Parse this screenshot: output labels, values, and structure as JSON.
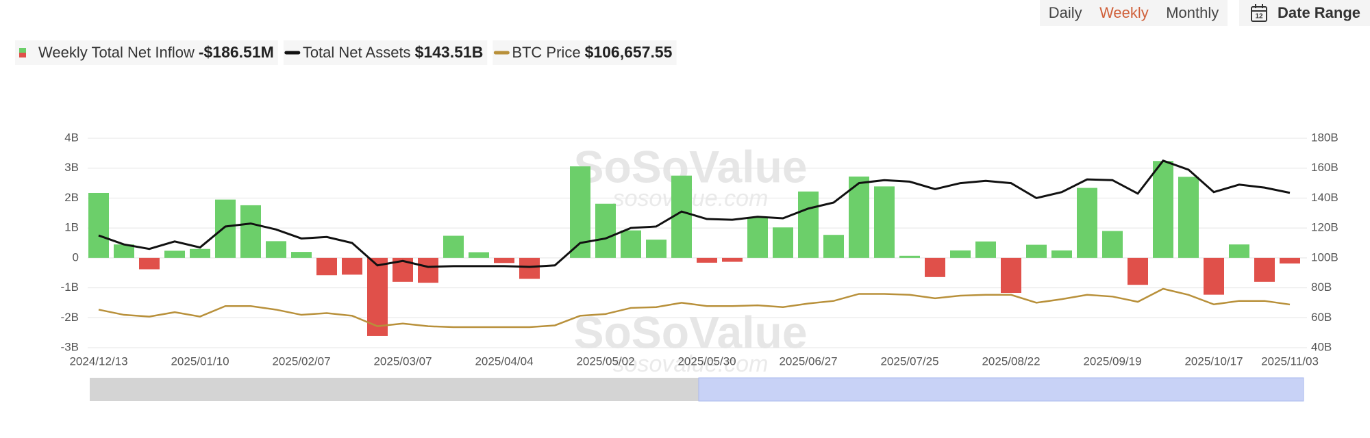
{
  "ui": {
    "tabs": [
      "Daily",
      "Weekly",
      "Monthly"
    ],
    "active_tab": 1,
    "date_range": "Date Range",
    "calendar_day": "12"
  },
  "chart_data": {
    "type": "bar",
    "watermark": "SoSoValue",
    "watermark_url": "sosovalue.com",
    "categories": [
      "2024/12/13",
      null,
      null,
      null,
      "2025/01/10",
      null,
      null,
      null,
      "2025/02/07",
      null,
      null,
      null,
      "2025/03/07",
      null,
      null,
      null,
      "2025/04/04",
      null,
      null,
      null,
      "2025/05/02",
      null,
      null,
      null,
      "2025/05/30",
      null,
      null,
      null,
      "2025/06/27",
      null,
      null,
      null,
      "2025/07/25",
      null,
      null,
      null,
      "2025/08/22",
      null,
      null,
      null,
      "2025/09/19",
      null,
      null,
      null,
      "2025/10/17",
      null,
      null,
      "2025/11/03"
    ],
    "series": [
      {
        "name": "Weekly Total Net Inflow",
        "latest": "-$186.51M",
        "type": "bar",
        "axis": "y",
        "color": "#6ccf6a",
        "negative_color": "#e0504a",
        "values": [
          2.17,
          0.45,
          -0.38,
          0.24,
          0.3,
          1.95,
          1.76,
          0.56,
          0.2,
          -0.58,
          -0.56,
          -2.61,
          -0.8,
          -0.83,
          0.74,
          0.19,
          -0.17,
          -0.7,
          0,
          3.06,
          1.81,
          0.92,
          0.61,
          2.75,
          -0.16,
          -0.13,
          1.37,
          1.02,
          2.22,
          0.77,
          2.72,
          2.39,
          0.07,
          -0.64,
          0.25,
          0.55,
          -1.17,
          0.44,
          0.25,
          2.34,
          0.9,
          -0.9,
          3.24,
          2.71,
          -1.23,
          0.45,
          -0.8,
          -0.18651
        ]
      },
      {
        "name": "Total Net Assets",
        "latest": "$143.51B",
        "type": "line",
        "axis": "y2",
        "color": "#111111",
        "values": [
          115,
          109,
          106,
          111,
          107,
          121,
          123,
          119,
          113,
          114,
          110,
          95,
          98,
          94,
          94.5,
          94.5,
          94.5,
          94,
          95,
          110,
          113,
          120,
          121,
          131,
          126,
          125.5,
          127.5,
          126.5,
          133,
          137,
          150,
          152,
          151,
          146,
          150,
          151.5,
          150,
          140,
          144,
          152.5,
          152,
          143,
          165,
          159,
          144,
          149,
          147,
          143.51
        ]
      },
      {
        "name": "BTC Price",
        "latest": "$106,657.55",
        "type": "line",
        "axis": "y3",
        "color": "#b8903a",
        "values": [
          101000,
          95300,
          93400,
          98200,
          93400,
          104900,
          104900,
          101000,
          95300,
          97200,
          94300,
          82800,
          85700,
          82800,
          81800,
          81800,
          81800,
          81800,
          83700,
          94300,
          96200,
          102900,
          103800,
          108600,
          104900,
          104900,
          105800,
          103800,
          107700,
          110600,
          118300,
          118300,
          117300,
          113500,
          116400,
          117300,
          117300,
          108600,
          112500,
          117300,
          115400,
          109600,
          123900,
          117300,
          106800,
          110600,
          110600,
          106657.55
        ]
      }
    ],
    "ylim": [
      -3,
      4
    ],
    "yticks": [
      {
        "value": -3,
        "label": "-3B"
      },
      {
        "value": -2,
        "label": "-2B"
      },
      {
        "value": -1,
        "label": "-1B"
      },
      0,
      {
        "value": 1,
        "label": "1B"
      },
      {
        "value": 2,
        "label": "2B"
      },
      {
        "value": 3,
        "label": "3B"
      },
      {
        "value": 4,
        "label": "4B"
      }
    ],
    "y2lim": [
      40,
      180
    ],
    "y2ticks": [
      {
        "value": 40,
        "label": "40B"
      },
      {
        "value": 60,
        "label": "60B"
      },
      {
        "value": 80,
        "label": "80B"
      },
      {
        "value": 100,
        "label": "100B"
      },
      {
        "value": 120,
        "label": "120B"
      },
      {
        "value": 140,
        "label": "140B"
      },
      {
        "value": 160,
        "label": "160B"
      },
      {
        "value": 180,
        "label": "180B"
      }
    ],
    "grid": true
  }
}
